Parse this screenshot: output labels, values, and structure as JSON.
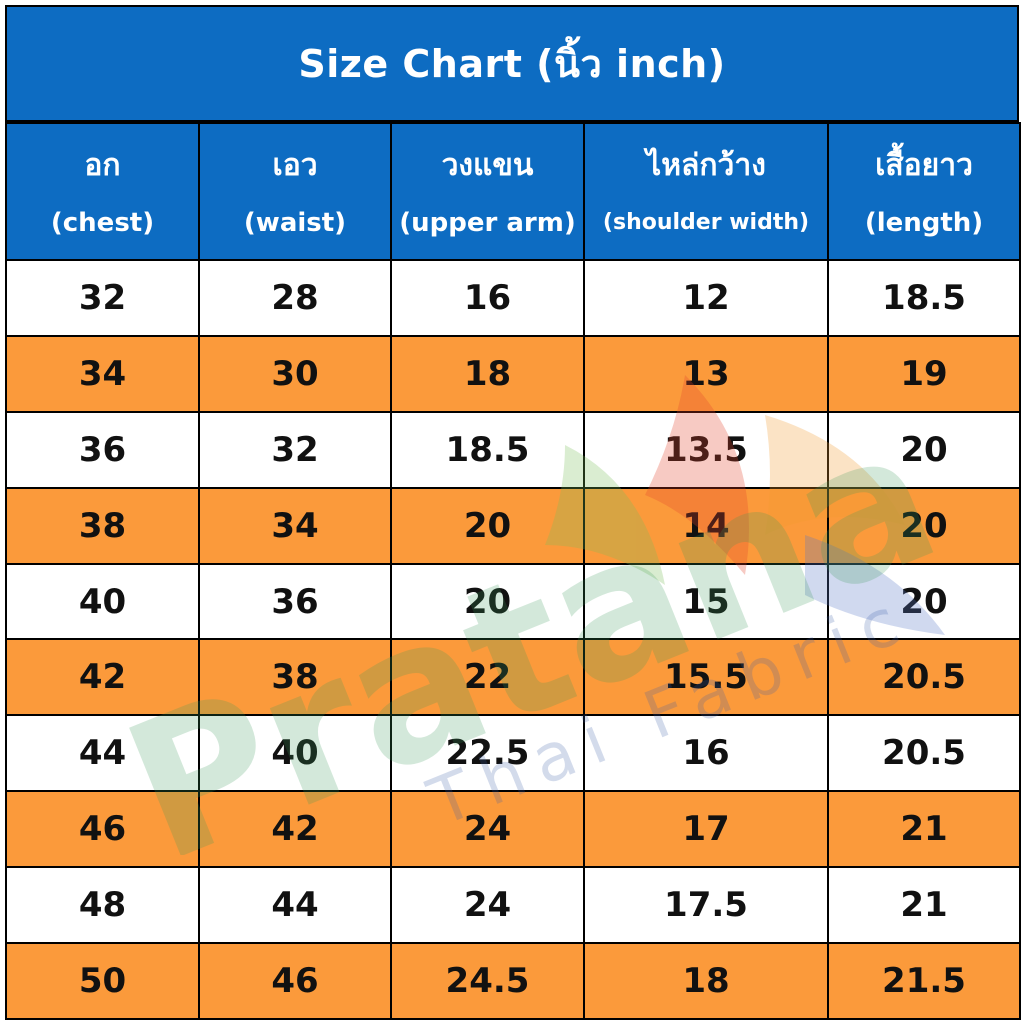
{
  "title": "Size Chart (นิ้ว inch)",
  "headers": [
    {
      "th": "อก",
      "en": "(chest)"
    },
    {
      "th": "เอว",
      "en": "(waist)"
    },
    {
      "th": "วงแขน",
      "en": "(upper arm)"
    },
    {
      "th": "ไหล่กว้าง",
      "en": "(shoulder width)"
    },
    {
      "th": "เสื้อยาว",
      "en": "(length)"
    }
  ],
  "rows": [
    [
      "32",
      "28",
      "16",
      "12",
      "18.5"
    ],
    [
      "34",
      "30",
      "18",
      "13",
      "19"
    ],
    [
      "36",
      "32",
      "18.5",
      "13.5",
      "20"
    ],
    [
      "38",
      "34",
      "20",
      "14",
      "20"
    ],
    [
      "40",
      "36",
      "20",
      "15",
      "20"
    ],
    [
      "42",
      "38",
      "22",
      "15.5",
      "20.5"
    ],
    [
      "44",
      "40",
      "22.5",
      "16",
      "20.5"
    ],
    [
      "46",
      "42",
      "24",
      "17",
      "21"
    ],
    [
      "48",
      "44",
      "24",
      "17.5",
      "21"
    ],
    [
      "50",
      "46",
      "24.5",
      "18",
      "21.5"
    ]
  ],
  "watermark": {
    "brand": "Pratana",
    "tagline": "Thai Fabric"
  },
  "colors": {
    "header_blue": "#0d6cc2",
    "row_orange": "#fb9a3b",
    "row_white": "#ffffff"
  }
}
